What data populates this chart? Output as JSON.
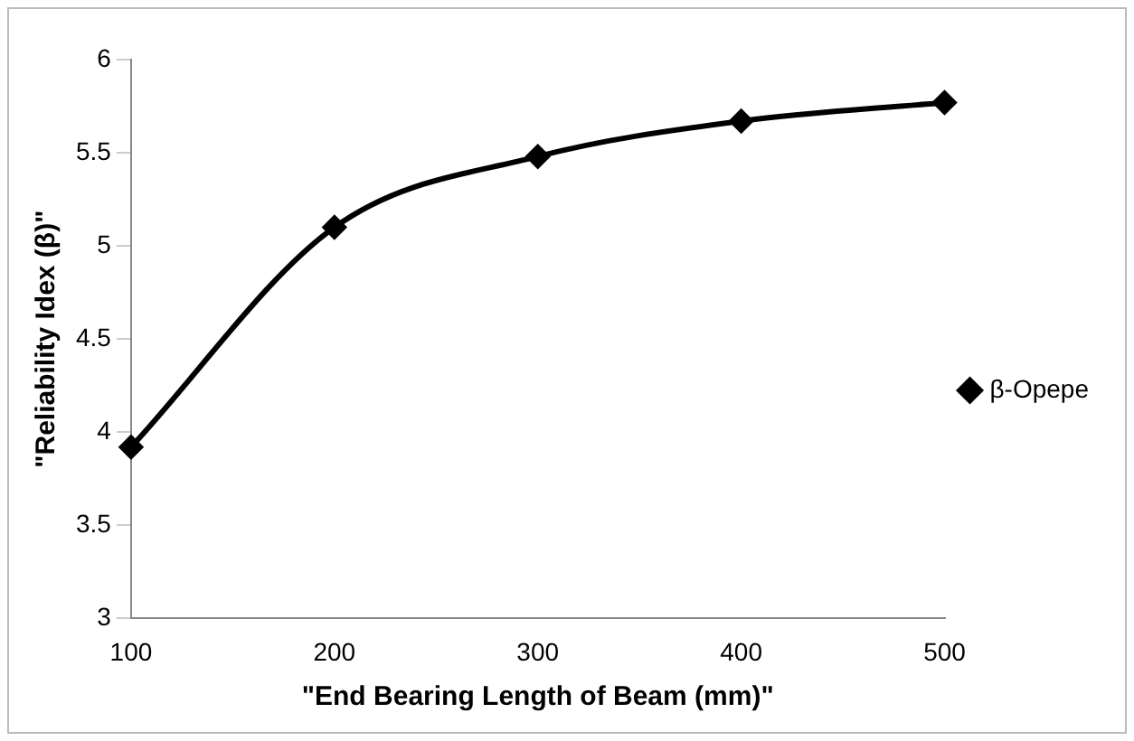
{
  "chart_data": {
    "type": "line",
    "xlabel": "\"End Bearing Length of Beam (mm)\"",
    "ylabel": "\"Reliability Idex (β)\"",
    "x": [
      100,
      200,
      300,
      400,
      500
    ],
    "series": [
      {
        "name": "β-Opepe",
        "color": "#000000",
        "values": [
          3.92,
          5.1,
          5.48,
          5.67,
          5.77
        ]
      }
    ],
    "xlim": [
      100,
      500
    ],
    "xticks": [
      100,
      200,
      300,
      400,
      500
    ],
    "ylim": [
      3,
      6
    ],
    "yticks": [
      3,
      3.5,
      4,
      4.5,
      5,
      5.5,
      6
    ],
    "grid": false,
    "legend": "right",
    "marker": "diamond",
    "line_style": "solid"
  }
}
